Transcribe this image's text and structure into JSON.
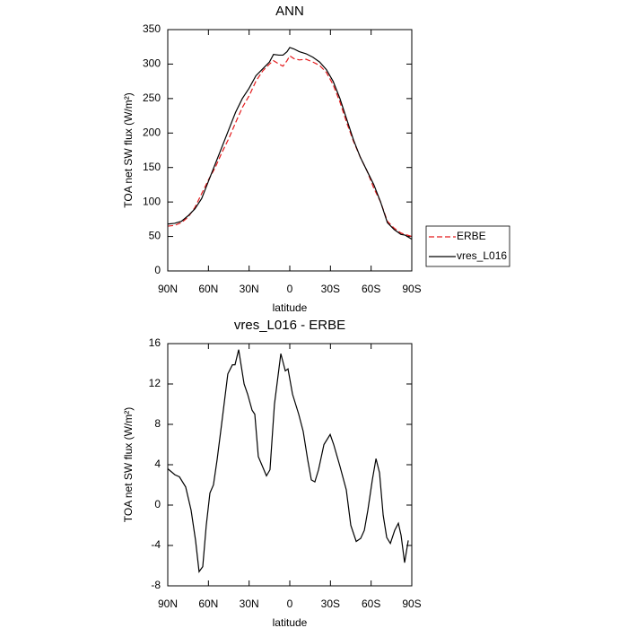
{
  "chart_data": [
    {
      "type": "line",
      "title": "ANN",
      "xlabel": "latitude",
      "ylabel": "TOA net SW flux (W/m²)",
      "xlim": [
        90,
        -90
      ],
      "xticks": [
        {
          "value": 90,
          "label": "90N"
        },
        {
          "value": 60,
          "label": "60N"
        },
        {
          "value": 30,
          "label": "30N"
        },
        0,
        {
          "value": -30,
          "label": "30S"
        },
        {
          "value": -60,
          "label": "60S"
        },
        {
          "value": -90,
          "label": "90S"
        }
      ],
      "ylim": [
        0,
        350
      ],
      "yticks": [
        0,
        50,
        100,
        150,
        200,
        250,
        300,
        350
      ],
      "legend": "right",
      "x": [
        90,
        85,
        80,
        75,
        70,
        65,
        60,
        55,
        50,
        45,
        40,
        35,
        30,
        25,
        20,
        15,
        12,
        8,
        5,
        2,
        0,
        -3,
        -7,
        -12,
        -17,
        -22,
        -27,
        -32,
        -37,
        -42,
        -47,
        -52,
        -57,
        -62,
        -67,
        -72,
        -77,
        -82,
        -85,
        -90
      ],
      "series": [
        {
          "name": "ERBE",
          "color": "#e41a1c",
          "dash": true,
          "values": [
            65,
            66,
            70,
            78,
            92,
            112,
            132,
            150,
            172,
            192,
            215,
            237,
            254,
            275,
            290,
            300,
            305,
            300,
            297,
            305,
            312,
            308,
            306,
            307,
            303,
            298,
            288,
            270,
            245,
            215,
            188,
            165,
            145,
            120,
            100,
            72,
            62,
            55,
            53,
            50
          ]
        },
        {
          "name": "vres_L016",
          "color": "#000000",
          "dash": false,
          "values": [
            68,
            69,
            72,
            80,
            90,
            105,
            130,
            155,
            180,
            205,
            230,
            250,
            265,
            283,
            293,
            303,
            314,
            313,
            313,
            318,
            324,
            322,
            318,
            315,
            310,
            303,
            292,
            275,
            250,
            220,
            190,
            165,
            145,
            125,
            100,
            70,
            60,
            53,
            52,
            46
          ]
        }
      ]
    },
    {
      "type": "line",
      "title": "vres_L016 - ERBE",
      "xlabel": "latitude",
      "ylabel": "TOA net SW flux (W/m²)",
      "xlim": [
        90,
        -90
      ],
      "xticks": [
        {
          "value": 90,
          "label": "90N"
        },
        {
          "value": 60,
          "label": "60N"
        },
        {
          "value": 30,
          "label": "30N"
        },
        0,
        {
          "value": -30,
          "label": "30S"
        },
        {
          "value": -60,
          "label": "60S"
        },
        {
          "value": -90,
          "label": "90S"
        }
      ],
      "ylim": [
        -8,
        16
      ],
      "yticks": [
        -8,
        -4,
        0,
        4,
        8,
        12,
        16
      ],
      "x": [
        90,
        84.7,
        81.4,
        76.8,
        72.8,
        69.5,
        66.9,
        64.2,
        61.6,
        58.9,
        56.3,
        53.6,
        50.3,
        45.7,
        42.3,
        40.4,
        37.7,
        33.7,
        31.1,
        27.8,
        25.8,
        23.2,
        17.2,
        14.6,
        11.3,
        6.6,
        3.3,
        1.3,
        -2,
        -6.6,
        -9.9,
        -13.2,
        -15.9,
        -18.5,
        -21.2,
        -25.2,
        -29.8,
        -32.4,
        -37.1,
        -41.7,
        -45,
        -49,
        -52.3,
        -55,
        -57.6,
        -60.9,
        -63.6,
        -66.2,
        -68.9,
        -71.5,
        -74.2,
        -77.4,
        -80.1,
        -82.1,
        -84.7,
        -87.4
      ],
      "color": "#000000",
      "values": [
        3.6,
        3,
        2.8,
        1.8,
        -0.5,
        -3.5,
        -6.6,
        -6.1,
        -2,
        1.2,
        2,
        4.5,
        8,
        13,
        13.9,
        13.9,
        15.4,
        12,
        11,
        9.4,
        9,
        4.8,
        2.9,
        3.5,
        10,
        15,
        13.3,
        13.5,
        11,
        9,
        7.3,
        4.5,
        2.5,
        2.3,
        3.5,
        6,
        7,
        6,
        3.8,
        1.5,
        -2,
        -3.6,
        -3.3,
        -2.5,
        -0.5,
        2.5,
        4.6,
        3.2,
        -1,
        -3.2,
        -3.8,
        -2.5,
        -1.8,
        -3,
        -5.7,
        -3.5
      ]
    }
  ]
}
